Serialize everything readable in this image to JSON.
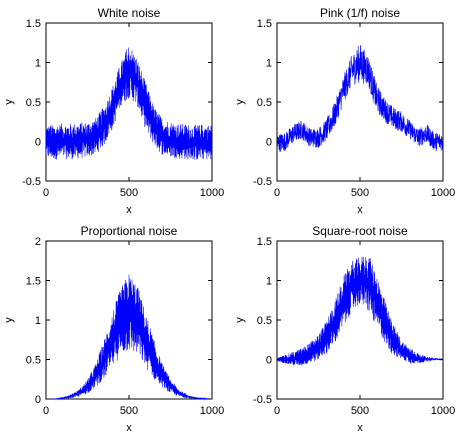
{
  "chart_data": [
    {
      "type": "line",
      "title": "White noise",
      "xlabel": "x",
      "ylabel": "y",
      "xlim": [
        0,
        1000
      ],
      "ylim": [
        -0.5,
        1.5
      ],
      "xticks": [
        0,
        500,
        1000
      ],
      "yticks": [
        -0.5,
        0,
        0.5,
        1,
        1.5
      ],
      "ytick_labels": [
        "-0.5",
        "0",
        "0.5",
        "1",
        "1.5"
      ],
      "grid": false,
      "series": [
        {
          "color": "#0000ff",
          "x": [
            0,
            50,
            100,
            150,
            200,
            250,
            300,
            350,
            400,
            450,
            500,
            550,
            600,
            650,
            700,
            750,
            800,
            850,
            900,
            950,
            1000
          ],
          "y_upper": [
            0.21,
            0.22,
            0.23,
            0.23,
            0.24,
            0.25,
            0.3,
            0.45,
            0.7,
            1.0,
            1.25,
            1.05,
            0.75,
            0.45,
            0.3,
            0.25,
            0.23,
            0.22,
            0.21,
            0.22,
            0.21
          ],
          "y_lower": [
            -0.22,
            -0.23,
            -0.22,
            -0.23,
            -0.22,
            -0.2,
            -0.17,
            -0.05,
            0.15,
            0.45,
            0.55,
            0.45,
            0.15,
            -0.05,
            -0.17,
            -0.2,
            -0.22,
            -0.23,
            -0.24,
            -0.23,
            -0.24
          ]
        }
      ]
    },
    {
      "type": "line",
      "title": "Pink (1/f) noise",
      "xlabel": "x",
      "ylabel": "y",
      "xlim": [
        0,
        1000
      ],
      "ylim": [
        -0.5,
        1.5
      ],
      "xticks": [
        0,
        500,
        1000
      ],
      "yticks": [
        -0.5,
        0,
        0.5,
        1,
        1.5
      ],
      "ytick_labels": [
        "-0.5",
        "0",
        "0.5",
        "1",
        "1.5"
      ],
      "grid": false,
      "series": [
        {
          "color": "#0000ff",
          "x": [
            0,
            50,
            100,
            150,
            200,
            250,
            300,
            350,
            400,
            450,
            500,
            550,
            600,
            650,
            700,
            750,
            800,
            850,
            900,
            950,
            1000
          ],
          "y": [
            -0.02,
            0.0,
            0.1,
            0.15,
            0.05,
            0.05,
            0.15,
            0.35,
            0.65,
            0.9,
            1.0,
            0.9,
            0.55,
            0.4,
            0.3,
            0.25,
            0.15,
            0.05,
            0.1,
            0.0,
            0.0
          ],
          "y_noise_band": [
            0.12,
            0.12,
            0.12,
            0.12,
            0.12,
            0.13,
            0.14,
            0.16,
            0.18,
            0.2,
            0.25,
            0.2,
            0.18,
            0.15,
            0.14,
            0.13,
            0.12,
            0.12,
            0.12,
            0.12,
            0.12
          ]
        }
      ]
    },
    {
      "type": "line",
      "title": "Proportional noise",
      "xlabel": "x",
      "ylabel": "y",
      "xlim": [
        0,
        1000
      ],
      "ylim": [
        0,
        2
      ],
      "xticks": [
        0,
        500,
        1000
      ],
      "yticks": [
        0,
        0.5,
        1,
        1.5,
        2
      ],
      "ytick_labels": [
        "0",
        "0.5",
        "1",
        "1.5",
        "2"
      ],
      "grid": false,
      "series": [
        {
          "color": "#0000ff",
          "x": [
            0,
            50,
            100,
            150,
            200,
            250,
            300,
            350,
            400,
            450,
            500,
            550,
            600,
            650,
            700,
            750,
            800,
            850,
            900,
            950,
            1000
          ],
          "y_upper": [
            0.0,
            0.0,
            0.02,
            0.06,
            0.12,
            0.25,
            0.45,
            0.75,
            1.1,
            1.4,
            1.6,
            1.45,
            1.1,
            0.75,
            0.45,
            0.25,
            0.12,
            0.06,
            0.02,
            0.01,
            0.0
          ],
          "y_lower": [
            0.0,
            0.0,
            0.0,
            0.01,
            0.03,
            0.07,
            0.15,
            0.25,
            0.4,
            0.55,
            0.6,
            0.55,
            0.4,
            0.25,
            0.15,
            0.07,
            0.03,
            0.01,
            0.0,
            0.0,
            0.0
          ]
        }
      ]
    },
    {
      "type": "line",
      "title": "Square-root noise",
      "xlabel": "x",
      "ylabel": "y",
      "xlim": [
        0,
        1000
      ],
      "ylim": [
        -0.5,
        1.5
      ],
      "xticks": [
        0,
        500,
        1000
      ],
      "yticks": [
        -0.5,
        0,
        0.5,
        1,
        1.5
      ],
      "ytick_labels": [
        "-0.5",
        "0",
        "0.5",
        "1",
        "1.5"
      ],
      "grid": false,
      "series": [
        {
          "color": "#0000ff",
          "x": [
            0,
            50,
            100,
            150,
            200,
            250,
            300,
            350,
            400,
            450,
            500,
            550,
            600,
            650,
            700,
            750,
            800,
            850,
            900,
            950,
            1000
          ],
          "y_upper": [
            0.02,
            0.06,
            0.1,
            0.15,
            0.22,
            0.32,
            0.5,
            0.75,
            1.05,
            1.25,
            1.3,
            1.35,
            1.1,
            0.75,
            0.45,
            0.25,
            0.15,
            0.08,
            0.04,
            0.02,
            0.01
          ],
          "y_lower": [
            -0.02,
            -0.05,
            -0.08,
            -0.08,
            -0.05,
            0.0,
            0.08,
            0.2,
            0.4,
            0.6,
            0.7,
            0.6,
            0.4,
            0.2,
            0.05,
            0.0,
            -0.05,
            -0.05,
            -0.03,
            -0.01,
            -0.01
          ]
        }
      ]
    }
  ]
}
